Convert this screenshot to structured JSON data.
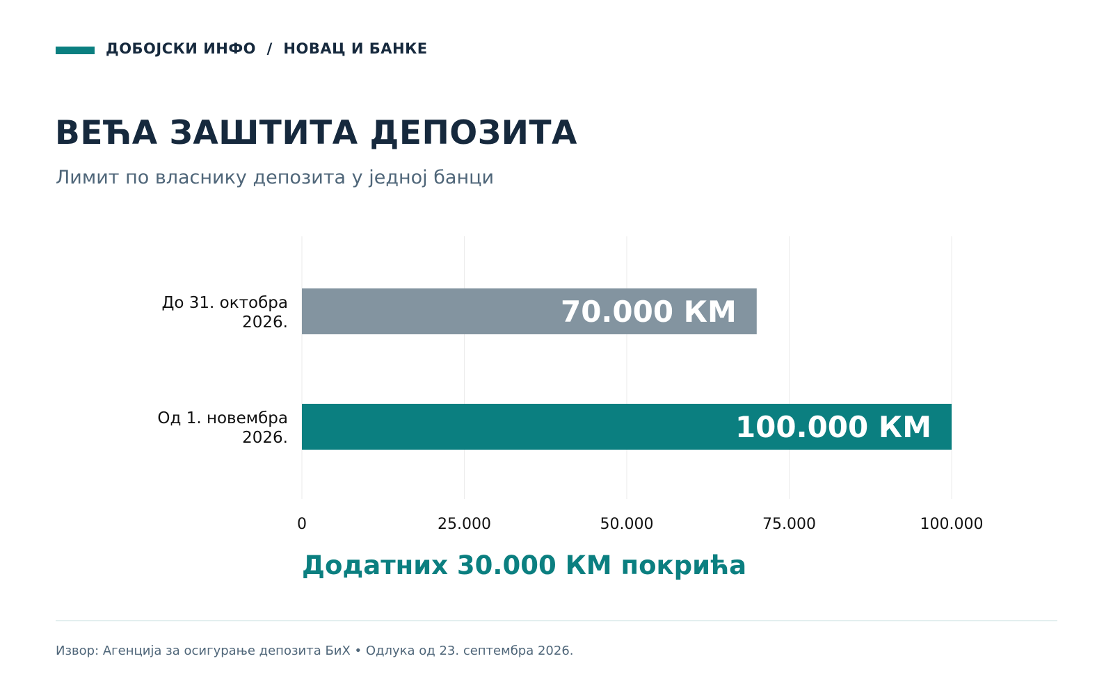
{
  "header": {
    "section": "ДОБОЈСКИ ИНФО  /  НОВАЦ И БАНКЕ"
  },
  "title": "ВЕЋА ЗАШТИТА ДЕПОЗИТА",
  "subtitle": "Лимит по власнику депозита у једној банци",
  "annotation": "Додатних 30.000 КМ покрића",
  "source": "Извор: Агенција за осигурање депозита БиХ • Одлука од 23. септембра 2026.",
  "colors": {
    "accent": "#0b7f80",
    "old_bar": "#8394a0",
    "new_bar": "#0b7f80",
    "title": "#16293d",
    "muted": "#4f6679"
  },
  "chart_data": {
    "type": "bar",
    "orientation": "horizontal",
    "categories": [
      [
        "До 31. октобра",
        "2026."
      ],
      [
        "Од 1. новембра",
        "2026."
      ]
    ],
    "values": [
      70000,
      100000
    ],
    "value_labels": [
      "70.000 КМ",
      "100.000 КМ"
    ],
    "bar_colors": [
      "#8394a0",
      "#0b7f80"
    ],
    "xlim": [
      0,
      100000
    ],
    "xticks": [
      0,
      25000,
      50000,
      75000,
      100000
    ],
    "xtick_labels": [
      "0",
      "25.000",
      "50.000",
      "75.000",
      "100.000"
    ],
    "grid": true,
    "xlabel": "",
    "ylabel": ""
  }
}
